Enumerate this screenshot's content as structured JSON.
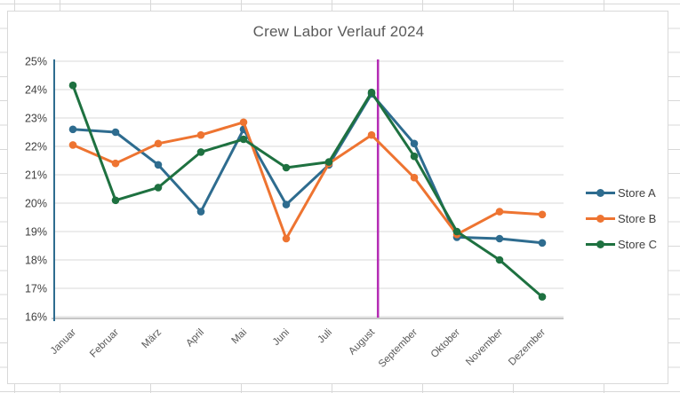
{
  "chart_data": {
    "type": "line",
    "title": "Crew Labor Verlauf 2024",
    "categories": [
      "Januar",
      "Februar",
      "März",
      "April",
      "Mai",
      "Juni",
      "Juli",
      "August",
      "September",
      "Oktober",
      "November",
      "Dezember"
    ],
    "series": [
      {
        "name": "Store A",
        "color": "#2e6c8f",
        "values": [
          22.6,
          22.5,
          21.35,
          19.7,
          22.6,
          19.95,
          21.35,
          23.85,
          22.1,
          18.8,
          18.75,
          18.6
        ]
      },
      {
        "name": "Store B",
        "color": "#ee7431",
        "values": [
          22.05,
          21.4,
          22.1,
          22.4,
          22.85,
          18.75,
          21.4,
          22.4,
          20.9,
          18.9,
          19.7,
          19.6
        ]
      },
      {
        "name": "Store C",
        "color": "#1e7140",
        "values": [
          24.15,
          20.1,
          20.55,
          21.8,
          22.25,
          21.25,
          21.45,
          23.9,
          21.65,
          19.0,
          18.0,
          16.7
        ]
      }
    ],
    "ylim": [
      16,
      25
    ],
    "ytick_step": 1,
    "ytick_labels": [
      "25%",
      "24%",
      "23%",
      "22%",
      "21%",
      "20%",
      "19%",
      "18%",
      "17%",
      "16%"
    ],
    "grid": true,
    "legend_position": "right",
    "vline": {
      "after_category": "August",
      "offset_fraction": 0.15,
      "color": "#b42cb4"
    },
    "colors": {
      "gridline": "#d9d9d9",
      "y_axis_line": "#2e6c8f",
      "x_axis_line": "#8c8c8c",
      "title_text": "#595959",
      "y_label_text": "#3f3f3f",
      "x_label_text": "#595959",
      "legend_text": "#404040"
    }
  }
}
